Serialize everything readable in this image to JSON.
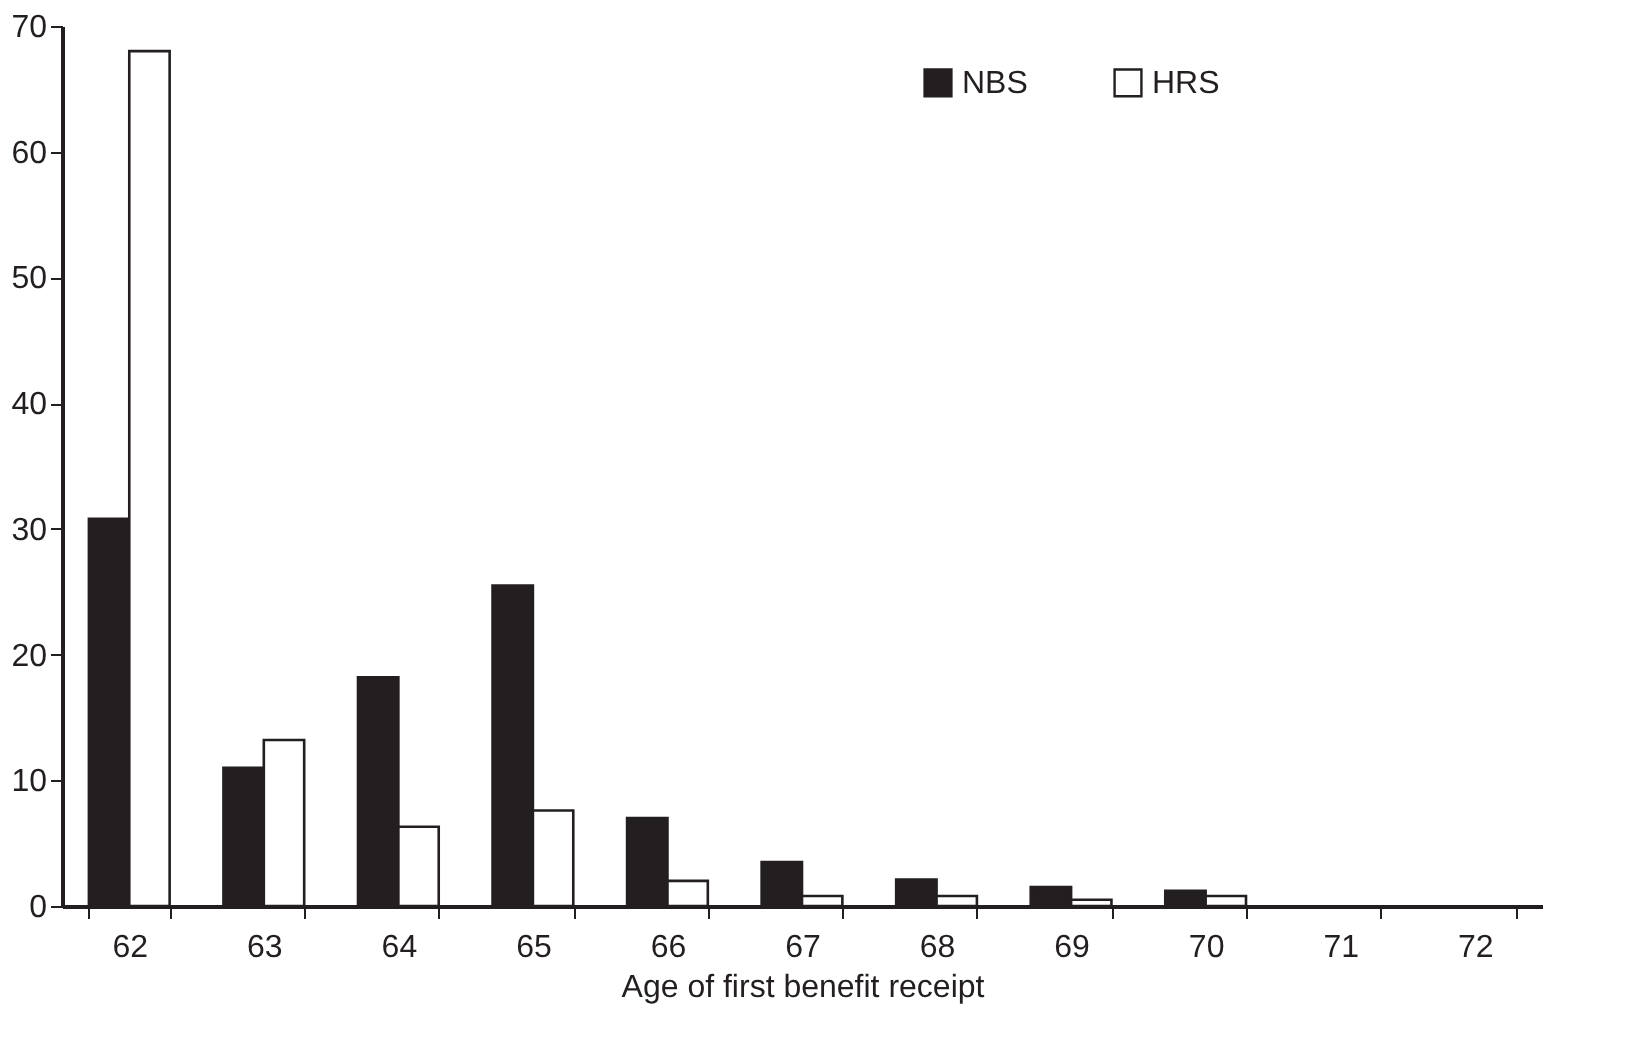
{
  "chart_data": {
    "type": "bar",
    "xlabel": "Age of first benefit receipt",
    "categories": [
      "62",
      "63",
      "64",
      "65",
      "66",
      "67",
      "68",
      "69",
      "70",
      "71",
      "72"
    ],
    "series": [
      {
        "name": "NBS",
        "color": "#231f20",
        "values": [
          30.8,
          11,
          18.2,
          25.5,
          7,
          3.5,
          2.1,
          1.5,
          1.2,
          0,
          0
        ]
      },
      {
        "name": "HRS",
        "color": "#ffffff",
        "values": [
          68,
          13.2,
          6.3,
          7.6,
          2,
          0.8,
          0.8,
          0.5,
          0.8,
          0,
          0
        ]
      }
    ],
    "ylim": [
      0,
      70
    ],
    "yticks": [
      0,
      10,
      20,
      30,
      40,
      50,
      60,
      70
    ],
    "grid": false,
    "legend": "top right"
  }
}
